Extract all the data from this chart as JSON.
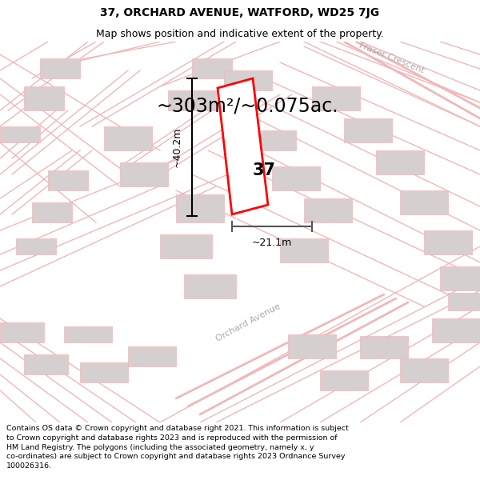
{
  "title": "37, ORCHARD AVENUE, WATFORD, WD25 7JG",
  "subtitle": "Map shows position and indicative extent of the property.",
  "area_text": "~303m²/~0.075ac.",
  "dim_height": "~40.2m",
  "dim_width": "~21.1m",
  "property_number": "37",
  "footer_text": "Contains OS data © Crown copyright and database right 2021. This information is subject to Crown copyright and database rights 2023 and is reproduced with the permission of HM Land Registry. The polygons (including the associated geometry, namely x, y co-ordinates) are subject to Crown copyright and database rights 2023 Ordnance Survey 100026316.",
  "bg_color": "#ffffff",
  "map_bg": "#ffffff",
  "road_color": "#f0b8b8",
  "building_color": "#d6cfcf",
  "plot_color": "#ff0000",
  "street_name_1": "Fraser Crescent",
  "street_name_2": "Orchard Avenue",
  "title_fontsize": 10,
  "subtitle_fontsize": 9,
  "area_fontsize": 17,
  "dim_fontsize": 9,
  "street_fontsize": 8,
  "footer_fontsize": 6.8
}
